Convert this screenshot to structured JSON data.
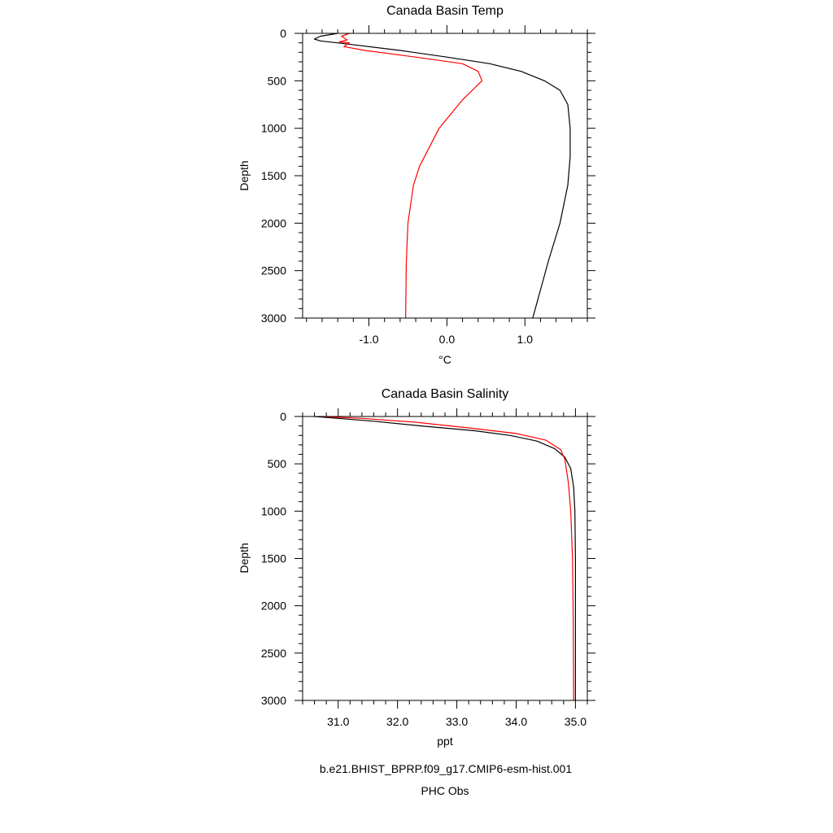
{
  "chart_data": [
    {
      "type": "line",
      "title": "Canada Basin Temp",
      "xlabel": "°C",
      "ylabel": "Depth",
      "xlim": [
        -1.85,
        1.8
      ],
      "ylim": [
        3000,
        0
      ],
      "y_inverted": true,
      "x_major_ticks": [
        -1.0,
        0.0,
        1.0
      ],
      "x_tick_labels": [
        "-1.0",
        "0.0",
        "1.0"
      ],
      "y_major_ticks": [
        0,
        500,
        1000,
        1500,
        2000,
        2500,
        3000
      ],
      "y_tick_labels": [
        "0",
        "500",
        "1000",
        "1500",
        "2000",
        "2500",
        "3000"
      ],
      "series": [
        {
          "name": "b.e21.BHIST_BPRP.f09_g17.CMIP6-esm-hist.001",
          "color": "#000000",
          "points": [
            [
              -1.4,
              0
            ],
            [
              -1.62,
              30
            ],
            [
              -1.7,
              60
            ],
            [
              -1.62,
              80
            ],
            [
              -1.3,
              110
            ],
            [
              -0.6,
              180
            ],
            [
              0.0,
              250
            ],
            [
              0.55,
              320
            ],
            [
              0.95,
              400
            ],
            [
              1.25,
              500
            ],
            [
              1.45,
              600
            ],
            [
              1.55,
              750
            ],
            [
              1.58,
              1000
            ],
            [
              1.58,
              1300
            ],
            [
              1.55,
              1600
            ],
            [
              1.45,
              2000
            ],
            [
              1.3,
              2400
            ],
            [
              1.1,
              3000
            ]
          ]
        },
        {
          "name": "PHC Obs",
          "color": "#ff0000",
          "points": [
            [
              -1.25,
              0
            ],
            [
              -1.35,
              30
            ],
            [
              -1.28,
              70
            ],
            [
              -1.38,
              90
            ],
            [
              -1.25,
              100
            ],
            [
              -1.32,
              140
            ],
            [
              -1.05,
              180
            ],
            [
              -0.4,
              250
            ],
            [
              0.2,
              320
            ],
            [
              0.4,
              400
            ],
            [
              0.45,
              500
            ],
            [
              0.2,
              700
            ],
            [
              -0.1,
              1000
            ],
            [
              -0.35,
              1400
            ],
            [
              -0.43,
              1600
            ],
            [
              -0.5,
              2000
            ],
            [
              -0.52,
              2400
            ],
            [
              -0.53,
              3000
            ]
          ]
        }
      ]
    },
    {
      "type": "line",
      "title": "Canada Basin Salinity",
      "xlabel": "ppt",
      "ylabel": "Depth",
      "xlim": [
        30.4,
        35.2
      ],
      "ylim": [
        3000,
        0
      ],
      "y_inverted": true,
      "x_major_ticks": [
        31.0,
        32.0,
        33.0,
        34.0,
        35.0
      ],
      "x_tick_labels": [
        "31.0",
        "32.0",
        "33.0",
        "34.0",
        "35.0"
      ],
      "y_major_ticks": [
        0,
        500,
        1000,
        1500,
        2000,
        2500,
        3000
      ],
      "y_tick_labels": [
        "0",
        "500",
        "1000",
        "1500",
        "2000",
        "2500",
        "3000"
      ],
      "series": [
        {
          "name": "b.e21.BHIST_BPRP.f09_g17.CMIP6-esm-hist.001",
          "color": "#000000",
          "points": [
            [
              30.6,
              0
            ],
            [
              31.0,
              20
            ],
            [
              31.6,
              50
            ],
            [
              32.4,
              100
            ],
            [
              33.3,
              150
            ],
            [
              33.9,
              200
            ],
            [
              34.35,
              260
            ],
            [
              34.65,
              340
            ],
            [
              34.82,
              430
            ],
            [
              34.92,
              550
            ],
            [
              34.97,
              750
            ],
            [
              34.99,
              1000
            ],
            [
              35.0,
              1500
            ],
            [
              35.0,
              2000
            ],
            [
              35.0,
              3000
            ]
          ]
        },
        {
          "name": "PHC Obs",
          "color": "#ff0000",
          "points": [
            [
              30.7,
              0
            ],
            [
              31.4,
              20
            ],
            [
              32.3,
              60
            ],
            [
              33.2,
              120
            ],
            [
              34.0,
              180
            ],
            [
              34.5,
              250
            ],
            [
              34.75,
              350
            ],
            [
              34.82,
              450
            ],
            [
              34.88,
              700
            ],
            [
              34.92,
              1000
            ],
            [
              34.95,
              1500
            ],
            [
              34.96,
              2000
            ],
            [
              34.97,
              3000
            ]
          ]
        }
      ]
    }
  ],
  "legend": {
    "placement": "bottom-center",
    "entries": [
      {
        "label": "b.e21.BHIST_BPRP.f09_g17.CMIP6-esm-hist.001",
        "color": "#000000"
      },
      {
        "label": "PHC Obs",
        "color": "#ff0000"
      }
    ]
  }
}
